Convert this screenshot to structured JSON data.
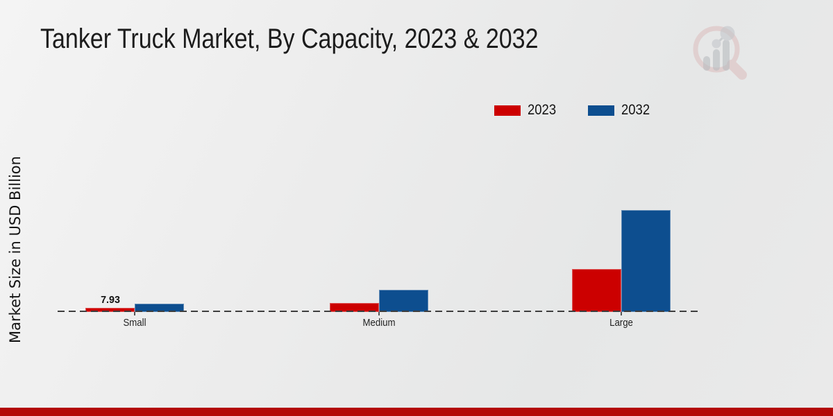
{
  "title": "Tanker Truck Market, By Capacity, 2023 & 2032",
  "ylabel": "Market Size in USD Billion",
  "watermark": "market-research-future-logo",
  "footer_accent_color": "#b30808",
  "chart_data": {
    "type": "bar",
    "categories": [
      "Small",
      "Medium",
      "Large"
    ],
    "series": [
      {
        "name": "2023",
        "color": "#cc0000",
        "values": [
          7.93,
          17.2,
          81.9
        ]
      },
      {
        "name": "2032",
        "color": "#0d4e8f",
        "values": [
          15.9,
          42.3,
          194.2
        ]
      }
    ],
    "annotations": [
      {
        "series_index": 0,
        "category_index": 0,
        "text": "7.93"
      }
    ],
    "ylim": [
      0,
      210
    ],
    "grid": false,
    "baseline_style": "dashed",
    "legend_position": "top-right"
  }
}
